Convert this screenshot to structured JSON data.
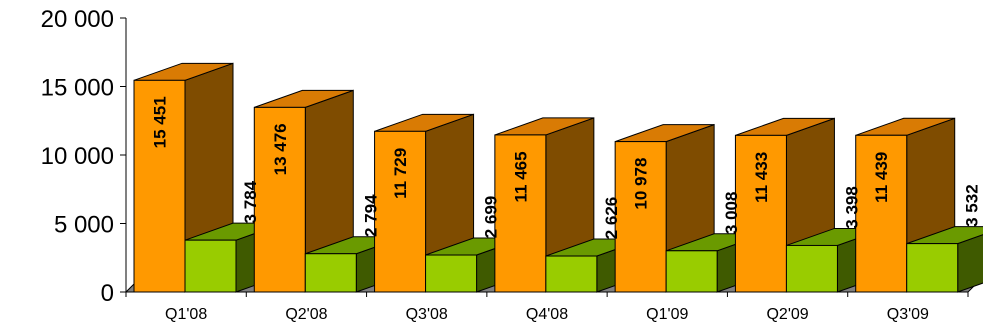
{
  "chart_data": {
    "type": "bar",
    "style": "3d-clustered",
    "categories": [
      "Q1'08",
      "Q2'08",
      "Q3'08",
      "Q4'08",
      "Q1'09",
      "Q2'09",
      "Q3'09"
    ],
    "series": [
      {
        "values": [
          15451,
          13476,
          11729,
          11465,
          10978,
          11433,
          11439
        ],
        "labels": [
          "15 451",
          "13 476",
          "11 729",
          "11 465",
          "10 978",
          "11 433",
          "11 439"
        ],
        "colors": {
          "front": "#FF9900",
          "top": "#D97B04",
          "side": "#7F4C00"
        }
      },
      {
        "values": [
          3784,
          2794,
          2699,
          2626,
          3008,
          3398,
          3532
        ],
        "labels": [
          "3 784",
          "2 794",
          "2 699",
          "2 626",
          "3 008",
          "3 398",
          "3 532"
        ],
        "colors": {
          "front": "#99CC00",
          "top": "#6A9A00",
          "side": "#3F5A00"
        }
      }
    ],
    "yticks": [
      {
        "value": 0,
        "label": "0"
      },
      {
        "value": 5000,
        "label": "5 000"
      },
      {
        "value": 10000,
        "label": "10 000"
      },
      {
        "value": 15000,
        "label": "15 000"
      },
      {
        "value": 20000,
        "label": "20 000"
      }
    ],
    "ylim": [
      0,
      20000
    ],
    "grid": false,
    "legend": "none",
    "floor_color": "#808080"
  }
}
